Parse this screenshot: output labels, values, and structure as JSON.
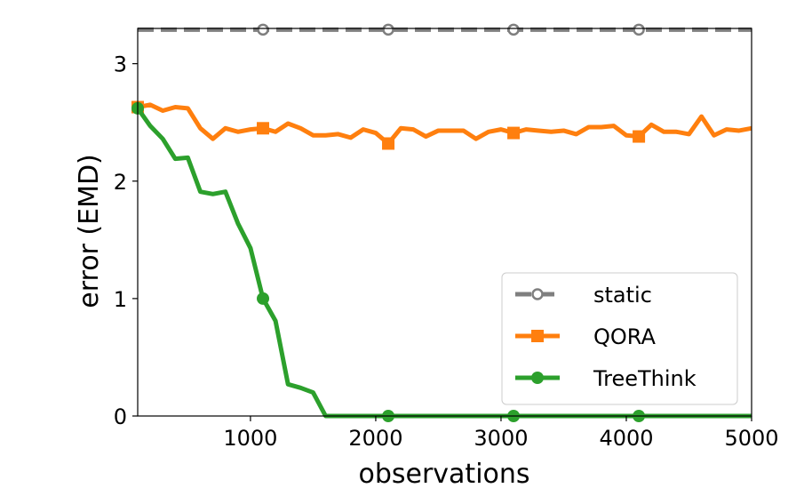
{
  "chart_data": {
    "type": "line",
    "title": "",
    "xlabel": "observations",
    "ylabel": "error (EMD)",
    "xlim": [
      100,
      5000
    ],
    "ylim": [
      0,
      3.3
    ],
    "xticks": [
      1000,
      2000,
      3000,
      4000,
      5000
    ],
    "yticks": [
      0,
      1,
      2,
      3
    ],
    "grid": false,
    "legend_position": "lower-right",
    "series": [
      {
        "name": "static",
        "color": "#7f7f7f",
        "dashed": true,
        "marker": "open-circle",
        "x": [
          100,
          5000
        ],
        "y": [
          3.29,
          3.29
        ],
        "marker_x": [
          1100,
          2100,
          3100,
          4100
        ],
        "marker_y": [
          3.29,
          3.29,
          3.29,
          3.29
        ]
      },
      {
        "name": "QORA",
        "color": "#ff7f0e",
        "dashed": false,
        "marker": "square",
        "x": [
          100,
          200,
          300,
          400,
          500,
          600,
          700,
          800,
          900,
          1000,
          1100,
          1200,
          1300,
          1400,
          1500,
          1600,
          1700,
          1800,
          1900,
          2000,
          2100,
          2200,
          2300,
          2400,
          2500,
          2600,
          2700,
          2800,
          2900,
          3000,
          3100,
          3200,
          3300,
          3400,
          3500,
          3600,
          3700,
          3800,
          3900,
          4000,
          4100,
          4200,
          4300,
          4400,
          4500,
          4600,
          4700,
          4800,
          4900,
          5000
        ],
        "y": [
          2.63,
          2.65,
          2.6,
          2.63,
          2.62,
          2.45,
          2.36,
          2.45,
          2.42,
          2.44,
          2.45,
          2.42,
          2.49,
          2.45,
          2.39,
          2.39,
          2.4,
          2.37,
          2.44,
          2.41,
          2.32,
          2.45,
          2.44,
          2.38,
          2.43,
          2.43,
          2.43,
          2.36,
          2.42,
          2.44,
          2.41,
          2.44,
          2.43,
          2.42,
          2.43,
          2.4,
          2.46,
          2.46,
          2.47,
          2.39,
          2.38,
          2.48,
          2.42,
          2.42,
          2.4,
          2.55,
          2.39,
          2.44,
          2.43,
          2.45
        ],
        "marker_x": [
          100,
          1100,
          2100,
          3100,
          4100
        ],
        "marker_y": [
          2.63,
          2.45,
          2.32,
          2.41,
          2.38
        ]
      },
      {
        "name": "TreeThink",
        "color": "#2ca02c",
        "dashed": false,
        "marker": "circle",
        "x": [
          100,
          200,
          300,
          400,
          500,
          600,
          700,
          800,
          900,
          1000,
          1100,
          1200,
          1300,
          1400,
          1500,
          1600,
          1700,
          2100,
          3100,
          4100,
          5000
        ],
        "y": [
          2.62,
          2.47,
          2.36,
          2.19,
          2.2,
          1.91,
          1.89,
          1.91,
          1.64,
          1.43,
          1.0,
          0.81,
          0.27,
          0.24,
          0.2,
          0.0,
          0.0,
          0.0,
          0.0,
          0.0,
          0.0
        ],
        "marker_x": [
          100,
          1100,
          2100,
          3100,
          4100
        ],
        "marker_y": [
          2.62,
          1.0,
          0.0,
          0.0,
          0.0
        ]
      }
    ]
  }
}
